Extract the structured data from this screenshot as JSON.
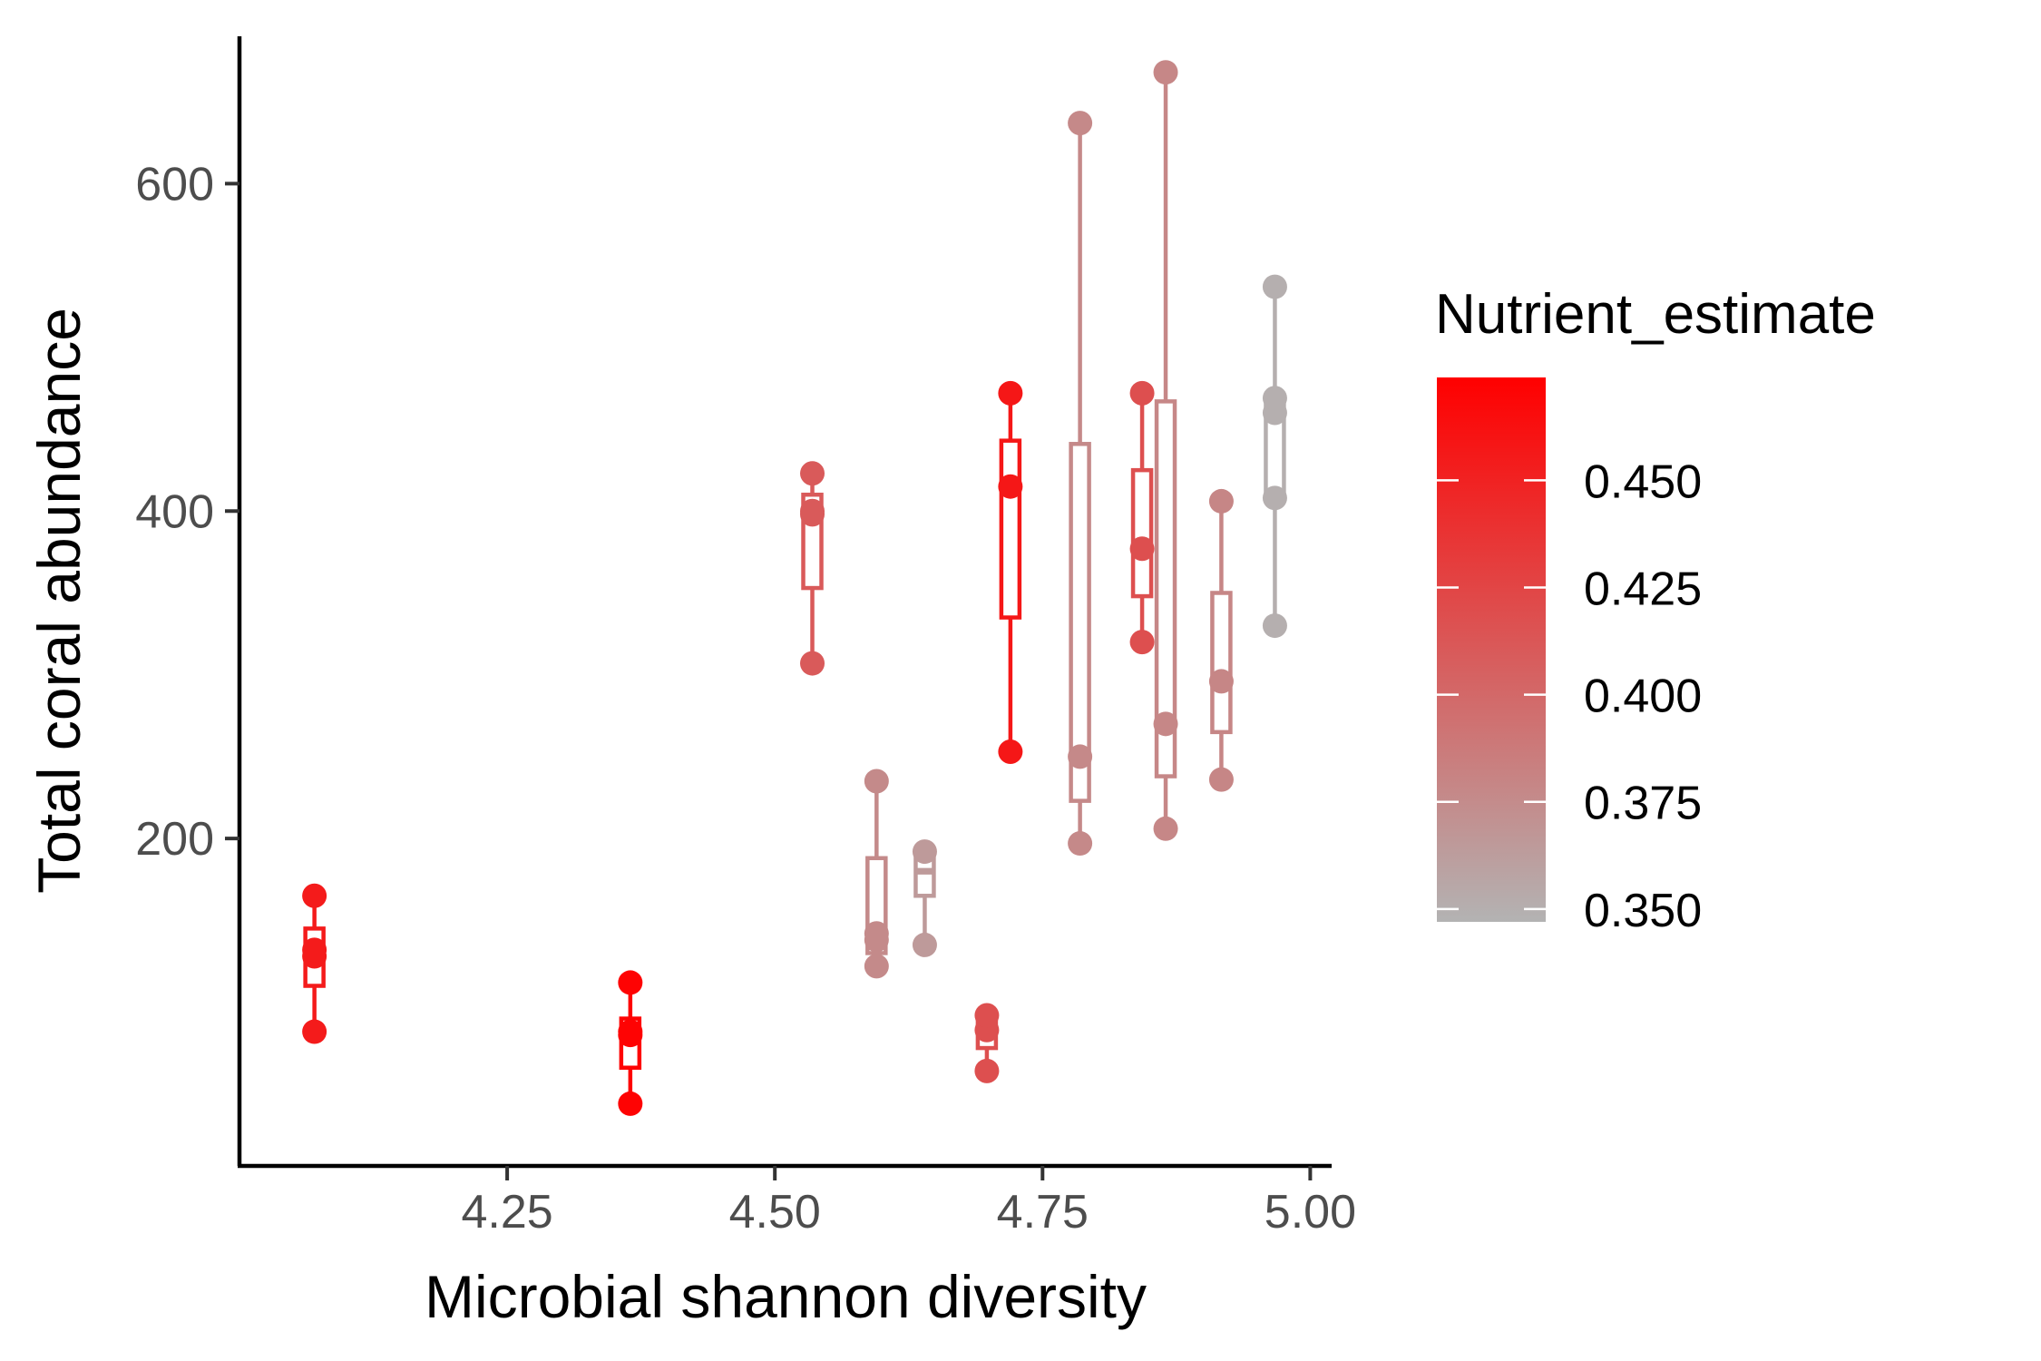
{
  "chart_data": {
    "type": "boxplot",
    "xlabel": "Microbial shannon diversity",
    "ylabel": "Total coral abundance",
    "xlim": [
      4.0,
      5.02
    ],
    "ylim": [
      0,
      690
    ],
    "x_ticks": [
      "4.25",
      "4.50",
      "4.75",
      "5.00"
    ],
    "x_tick_values": [
      4.25,
      4.5,
      4.75,
      5.0
    ],
    "y_ticks": [
      "200",
      "400",
      "600"
    ],
    "y_tick_values": [
      200,
      400,
      600
    ],
    "grid": false,
    "legend": {
      "title": "Nutrient_estimate",
      "placement": "right",
      "type": "gradient",
      "low_color": "#B3B3B3",
      "high_color": "#FF0000",
      "range": [
        0.347,
        0.474
      ],
      "breaks": [
        "0.450",
        "0.425",
        "0.400",
        "0.375",
        "0.350"
      ],
      "break_values": [
        0.45,
        0.425,
        0.4,
        0.375,
        0.35
      ]
    },
    "groups": [
      {
        "x": 4.07,
        "nutrient": 0.455,
        "q1": 110,
        "median": 128,
        "q3": 145,
        "whisker_low": 82,
        "whisker_high": 165,
        "points": [
          82,
          128,
          132,
          165
        ]
      },
      {
        "x": 4.365,
        "nutrient": 0.472,
        "q1": 60,
        "median": 80,
        "q3": 90,
        "whisker_low": 38,
        "whisker_high": 112,
        "points": [
          38,
          80,
          82,
          112
        ]
      },
      {
        "x": 4.535,
        "nutrient": 0.41,
        "q1": 353,
        "median": 398,
        "q3": 410,
        "whisker_low": 307,
        "whisker_high": 423,
        "points": [
          307,
          398,
          400,
          423
        ]
      },
      {
        "x": 4.595,
        "nutrient": 0.376,
        "q1": 130,
        "median": 140,
        "q3": 188,
        "whisker_low": 122,
        "whisker_high": 235,
        "points": [
          122,
          138,
          142,
          235
        ]
      },
      {
        "x": 4.64,
        "nutrient": 0.365,
        "q1": 165,
        "median": 180,
        "q3": 188,
        "whisker_low": 135,
        "whisker_high": 192,
        "points": [
          135,
          192
        ]
      },
      {
        "x": 4.698,
        "nutrient": 0.418,
        "q1": 72,
        "median": 83,
        "q3": 88,
        "whisker_low": 58,
        "whisker_high": 92,
        "points": [
          58,
          83,
          92
        ]
      },
      {
        "x": 4.72,
        "nutrient": 0.458,
        "q1": 335,
        "median": 415,
        "q3": 443,
        "whisker_low": 253,
        "whisker_high": 472,
        "points": [
          253,
          415,
          472
        ]
      },
      {
        "x": 4.785,
        "nutrient": 0.377,
        "q1": 223,
        "median": 250,
        "q3": 441,
        "whisker_low": 197,
        "whisker_high": 637,
        "points": [
          197,
          250,
          637
        ]
      },
      {
        "x": 4.843,
        "nutrient": 0.418,
        "q1": 348,
        "median": 377,
        "q3": 425,
        "whisker_low": 320,
        "whisker_high": 472,
        "points": [
          320,
          377,
          472
        ]
      },
      {
        "x": 4.865,
        "nutrient": 0.378,
        "q1": 238,
        "median": 270,
        "q3": 467,
        "whisker_low": 206,
        "whisker_high": 668,
        "points": [
          206,
          270,
          668
        ]
      },
      {
        "x": 4.917,
        "nutrient": 0.379,
        "q1": 265,
        "median": 296,
        "q3": 350,
        "whisker_low": 236,
        "whisker_high": 406,
        "points": [
          236,
          296,
          406
        ]
      },
      {
        "x": 4.967,
        "nutrient": 0.35,
        "q1": 408,
        "median": 460,
        "q3": 465,
        "whisker_low": 330,
        "whisker_high": 537,
        "points": [
          330,
          408,
          460,
          469,
          537
        ]
      }
    ]
  }
}
